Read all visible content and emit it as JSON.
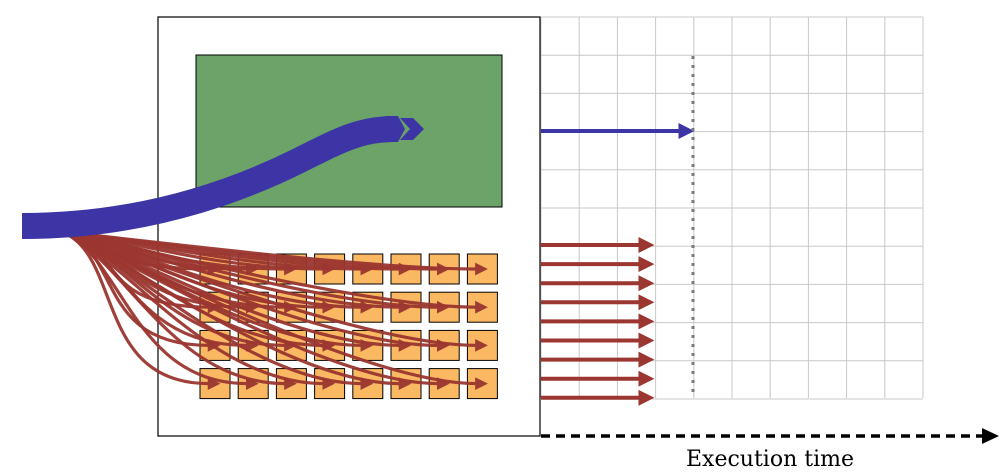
{
  "labels": {
    "x_axis": "Execution time"
  },
  "colors": {
    "background": "#ffffff",
    "grid": "#c8c8c8",
    "gpu_block": "#6ba368",
    "cpu_core": "#fbb862",
    "big_task": "#3d35a6",
    "small_task": "#9b3630",
    "marker": "#7a7a7a"
  },
  "structure": {
    "cpu_core_rows": 4,
    "cpu_core_cols": 8,
    "small_task_count": 32,
    "small_task_arrows_on_timeline": 9,
    "big_task_arrows_on_timeline": 1
  }
}
